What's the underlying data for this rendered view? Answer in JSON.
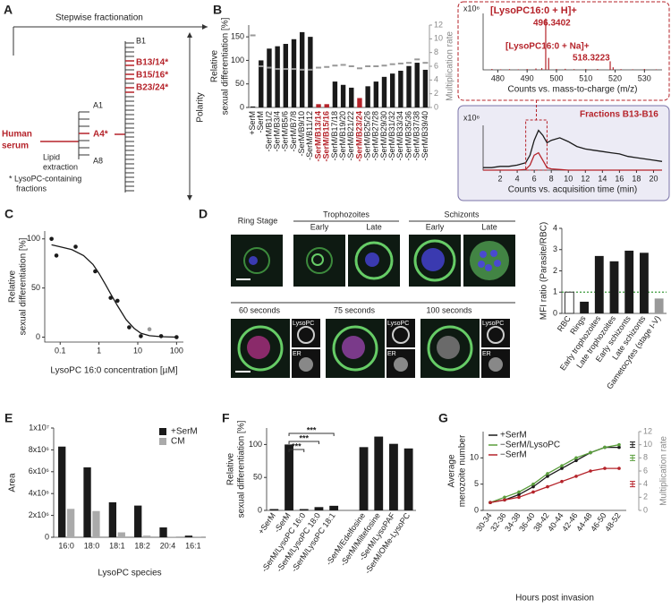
{
  "panel_a": {
    "panel": "A",
    "arrow_label": "Stepwise fractionation",
    "source": [
      "Human",
      "serum"
    ],
    "step": [
      "Lipid",
      "extraction"
    ],
    "a_fractions": [
      "A1",
      "A4*",
      "A8"
    ],
    "b_fractions": [
      "B1",
      "B13/14*",
      "B15/16*",
      "B23/24*"
    ],
    "axis": "Polarity",
    "note": [
      "* LysoPC-containing",
      "fractions"
    ]
  },
  "panel_d": {
    "panel": "D",
    "ring": "Ring Stage",
    "trophozoites": "Trophozoites",
    "schizonts": "Schizonts",
    "early": "Early",
    "late": "Late",
    "timepoints": [
      "60 seconds",
      "75 seconds",
      "100 seconds"
    ],
    "channels": [
      "LysoPC",
      "ER"
    ]
  },
  "chart_data": [
    {
      "type": "bar",
      "panel": "B",
      "ylabel": [
        "Relative",
        "sexual differentiation [%]"
      ],
      "y2label": "Multiplication rate",
      "color_labels": true,
      "categories": [
        "+SerM",
        "-SerM",
        "-SerM/B1/2",
        "-SerM/B3/4",
        "-SerM/B5/6",
        "-SerM/B7/8",
        "-SerM/B9/10",
        "-SerM/B11/12",
        "-SerM/B13/14",
        "-SerM/B15/16",
        "-SerM/B17/18",
        "-SerM/B19/20",
        "-SerM/B21/22",
        "-SerM/B23/24",
        "-SerM/B25/26",
        "-SerM/B27/28",
        "-SerM/B29/30",
        "-SerM/B31/32",
        "-SerM/B33/34",
        "-SerM/B35/36",
        "-SerM/B37/38",
        "-SerM/B39/40"
      ],
      "colors": [
        "#1a1a1a",
        "#1a1a1a",
        "#1a1a1a",
        "#1a1a1a",
        "#1a1a1a",
        "#1a1a1a",
        "#1a1a1a",
        "#1a1a1a",
        "#b5232a",
        "#b5232a",
        "#1a1a1a",
        "#1a1a1a",
        "#1a1a1a",
        "#b5232a",
        "#1a1a1a",
        "#1a1a1a",
        "#1a1a1a",
        "#1a1a1a",
        "#1a1a1a",
        "#1a1a1a",
        "#1a1a1a",
        "#1a1a1a"
      ],
      "series": [
        {
          "kind": "bar",
          "values": [
            2,
            100,
            125,
            130,
            135,
            145,
            160,
            150,
            7,
            7,
            55,
            48,
            42,
            20,
            45,
            55,
            65,
            72,
            78,
            88,
            95,
            80
          ]
        },
        {
          "kind": "marker",
          "axis": "y2",
          "color": "#999999",
          "values": [
            10.5,
            6,
            5.8,
            5.6,
            5.6,
            5.6,
            5.5,
            5.5,
            5.8,
            5.9,
            6.1,
            6.2,
            6,
            5.7,
            6,
            6,
            6.1,
            6.3,
            6.4,
            6.5,
            7,
            6.5
          ]
        }
      ],
      "ylim": [
        0,
        175
      ],
      "yticks": [
        0,
        50,
        100,
        150
      ],
      "y2lim": [
        0,
        12
      ],
      "y2ticks": [
        0,
        2,
        4,
        6,
        8,
        10,
        12
      ]
    },
    {
      "type": "spectrum",
      "scale_label": "x10⁶",
      "xlabel": "Counts vs. mass-to-charge (m/z)",
      "annotations": [
        "[LysoPC16:0 + H]+",
        "496.3402",
        "[LysoPC16:0 + Na]+",
        "518.3223"
      ],
      "series": [
        {
          "color": "#b5232a",
          "x": [
            478,
            481,
            484,
            487,
            490,
            493,
            495,
            496.34,
            497.34,
            500,
            503,
            506,
            510,
            514,
            518.32,
            519.32,
            522,
            526,
            530,
            534
          ],
          "values": [
            0.05,
            0.03,
            0.04,
            0.03,
            0.05,
            0.08,
            0.1,
            3.0,
            0.7,
            0.05,
            0.06,
            0.04,
            0.05,
            0.05,
            0.5,
            0.15,
            0.04,
            0.03,
            0.05,
            0.03
          ]
        }
      ],
      "xlim": [
        475,
        536
      ],
      "xticks": [
        480,
        490,
        500,
        510,
        520,
        530
      ],
      "ylim": [
        0,
        3.3
      ]
    },
    {
      "type": "line",
      "title": "Fractions B13-B16",
      "scale_label": "x10⁶",
      "xlabel": "Counts vs. acquisition time (min)",
      "x": [
        0,
        1,
        2,
        3,
        4,
        5,
        5.5,
        6,
        6.5,
        7,
        7.5,
        8,
        9,
        10,
        11,
        12,
        13,
        14,
        15,
        16,
        17,
        18,
        19,
        20,
        21
      ],
      "series": [
        {
          "color": "#1a1a1a",
          "values": [
            0.2,
            0.2,
            0.3,
            0.3,
            0.4,
            0.6,
            1.2,
            2.4,
            3.2,
            2.8,
            2.2,
            2.4,
            2.6,
            2.3,
            1.9,
            1.7,
            1.6,
            1.5,
            1.4,
            1.3,
            1.1,
            1.0,
            0.9,
            0.8,
            0.7
          ]
        },
        {
          "color": "#b5232a",
          "values": [
            0,
            0,
            0,
            0,
            0,
            0.05,
            0.4,
            1.2,
            1.4,
            0.8,
            0.2,
            0.1,
            0.05,
            0,
            0,
            0,
            0,
            0,
            0,
            0,
            0,
            0,
            0,
            0,
            0
          ]
        }
      ],
      "xlim": [
        0,
        21
      ],
      "xticks": [
        2,
        4,
        6,
        8,
        10,
        12,
        14,
        16,
        18,
        20
      ],
      "ylim": [
        0,
        3.6
      ]
    },
    {
      "type": "scatter",
      "panel": "C",
      "log_x": true,
      "ylabel": [
        "Relative",
        "sexual differentiation [%]"
      ],
      "xlabel": "LysoPC 16:0 concentration [µM]",
      "series": [
        {
          "kind": "scatter",
          "color": "#1a1a1a",
          "colors": [
            "#1a1a1a",
            "#1a1a1a",
            "#1a1a1a",
            "#1a1a1a",
            "#1a1a1a",
            "#1a1a1a",
            "#1a1a1a",
            "#1a1a1a",
            "#999999",
            "#1a1a1a",
            "#1a1a1a"
          ],
          "x": [
            0.06,
            0.08,
            0.25,
            0.8,
            2,
            3,
            6,
            12,
            20,
            40,
            100
          ],
          "values": [
            100,
            83,
            92,
            67,
            40,
            37,
            10,
            1,
            8,
            1,
            0
          ]
        },
        {
          "kind": "line",
          "color": "#1a1a1a",
          "x": [
            0.06,
            0.1,
            0.2,
            0.4,
            0.7,
            1,
            1.5,
            2,
            3,
            5,
            8,
            12,
            20,
            40,
            100
          ],
          "values": [
            94,
            92,
            89,
            83,
            74,
            65,
            53,
            44,
            32,
            18,
            9,
            4,
            1.5,
            0.5,
            0
          ]
        }
      ],
      "xlim": [
        0.04,
        150
      ],
      "xticks": [
        0.1,
        1,
        10,
        100
      ],
      "ylim": [
        -5,
        108
      ],
      "yticks": [
        0,
        50,
        100
      ]
    },
    {
      "type": "bar",
      "ylabel": "MFI ratio (Parasite/RBC)",
      "reference_line": 1,
      "reference_color": "#3a9a3a",
      "categories": [
        "RBC",
        "Rings",
        "Early trophozoites",
        "Late trophozoites",
        "Early schizonts",
        "Late schizonts",
        "Gametocytes (stage I-V)"
      ],
      "colors": [
        "#ffffff",
        "#1a1a1a",
        "#1a1a1a",
        "#1a1a1a",
        "#1a1a1a",
        "#1a1a1a",
        "#999999"
      ],
      "series": [
        {
          "kind": "bar",
          "values": [
            1,
            0.55,
            2.7,
            2.45,
            2.95,
            2.85,
            0.7
          ]
        }
      ],
      "ylim": [
        0,
        4
      ],
      "yticks": [
        0,
        1,
        2,
        3,
        4
      ]
    },
    {
      "type": "bar",
      "panel": "E",
      "ylabel": "Area",
      "xlabel": "LysoPC species",
      "legend": "upper right",
      "categories": [
        "16:0",
        "18:0",
        "18:1",
        "18:2",
        "20:4",
        "16:1"
      ],
      "series": [
        {
          "kind": "bar",
          "name": "+SerM",
          "color": "#1a1a1a",
          "values": [
            8300000,
            6400000,
            3200000,
            2900000,
            900000,
            150000
          ]
        },
        {
          "kind": "bar",
          "name": "CM",
          "color": "#aaaaaa",
          "values": [
            2600000,
            2400000,
            450000,
            150000,
            50000,
            20000
          ]
        }
      ],
      "ylim": [
        0,
        10000000
      ],
      "yticks": [
        0,
        {
          "value": 2000000,
          "label": "2x10⁶"
        },
        {
          "value": 4000000,
          "label": "4x10⁶"
        },
        {
          "value": 6000000,
          "label": "6x10⁶"
        },
        {
          "value": 8000000,
          "label": "8x10⁶"
        },
        {
          "value": 10000000,
          "label": "1x10⁷"
        }
      ]
    },
    {
      "type": "bar",
      "panel": "F",
      "ylabel": [
        "Relative",
        "sexual differentiation [%]"
      ],
      "annotations": [
        "***",
        "***",
        "***"
      ],
      "categories": [
        "+SerM",
        "-SerM",
        "-SerM/LysoPC 16:0",
        "-SerM/LysoPC 18:0",
        "-SerM/LysoPC 18:1",
        null,
        "-SerM/Edelfosine",
        "-SerM/Miltefosine",
        "-SerM/LysoPAF",
        "-SerM/OMe-LysoPC"
      ],
      "series": [
        {
          "kind": "bar",
          "color": "#1a1a1a",
          "values": [
            2,
            100,
            2,
            5,
            7,
            null,
            96,
            112,
            101,
            94
          ]
        }
      ],
      "ylim": [
        0,
        125
      ],
      "yticks": [
        0,
        50,
        100
      ]
    },
    {
      "type": "line",
      "panel": "G",
      "ylabel": [
        "Average",
        "merozoite number"
      ],
      "xlabel": "Hours post invasion",
      "y2label": "Multiplication rate",
      "legend": "upper left",
      "categories": [
        "30-34",
        "32-36",
        "34-38",
        "36-40",
        "38-42",
        "40-44",
        "42-46",
        "44-48",
        "46-50",
        "48-52"
      ],
      "series": [
        {
          "name": "+SerM",
          "color": "#1a1a1a",
          "values": [
            1.5,
            2,
            3,
            4.5,
            6.5,
            8,
            9.5,
            11,
            12,
            12
          ]
        },
        {
          "name": "−SerM/LysoPC",
          "color": "#5a9e3c",
          "values": [
            1.5,
            2.5,
            3.5,
            5,
            7,
            8.5,
            10,
            11,
            12,
            12.5
          ]
        },
        {
          "name": "−SerM",
          "color": "#b5232a",
          "values": [
            1.5,
            2,
            2.5,
            3.5,
            4.5,
            5.5,
            6.5,
            7.5,
            8,
            8
          ]
        }
      ],
      "rate_markers": [
        {
          "color": "#1a1a1a",
          "value": 10
        },
        {
          "color": "#5a9e3c",
          "value": 8
        },
        {
          "color": "#b5232a",
          "value": 4
        }
      ],
      "ylim": [
        0,
        15
      ],
      "yticks": [
        0,
        5,
        10
      ],
      "y2lim": [
        0,
        12
      ],
      "y2ticks": [
        0,
        2,
        4,
        6,
        8,
        10,
        12
      ]
    }
  ]
}
